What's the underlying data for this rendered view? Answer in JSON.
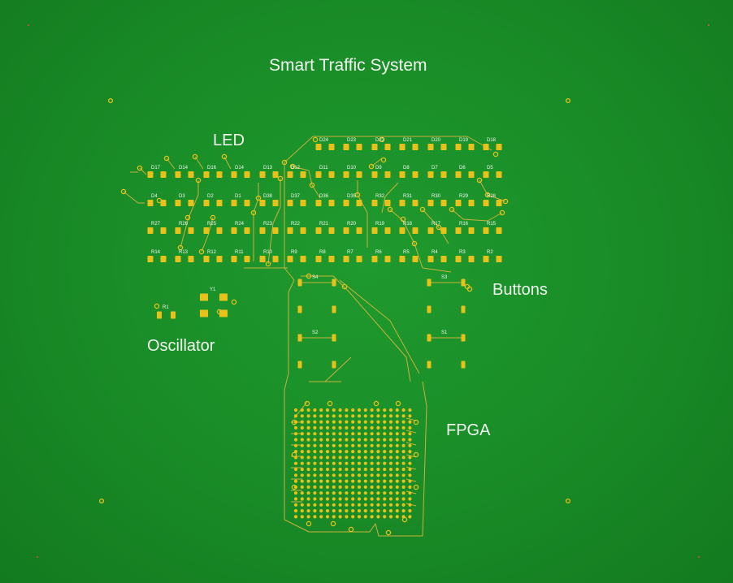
{
  "board": {
    "title": "Smart Traffic System",
    "labels": {
      "led": "LED",
      "buttons": "Buttons",
      "oscillator": "Oscillator",
      "fpga": "FPGA"
    },
    "colors": {
      "substrate": "#1a8e28",
      "pad": "#e8c21a",
      "trace": "#c9b23a",
      "silkscreen": "#f2f7f0"
    }
  },
  "designators": {
    "row1": [
      "D24",
      "D23",
      "D22",
      "D21",
      "D20",
      "D19",
      "D18"
    ],
    "row2": [
      "D17",
      "D14",
      "D16",
      "D14",
      "D13",
      "D12",
      "D11",
      "D10",
      "D9",
      "D8",
      "D7",
      "D6",
      "D5"
    ],
    "row3": [
      "D4",
      "D3",
      "D2",
      "D1",
      "D38",
      "D37",
      "D36",
      "D35",
      "R32",
      "R31",
      "R30",
      "R29",
      "R28"
    ],
    "row4": [
      "R27",
      "R26",
      "R25",
      "R24",
      "R23",
      "R22",
      "R21",
      "R20",
      "R19",
      "R18",
      "R17",
      "R16",
      "R15"
    ],
    "row5": [
      "R14",
      "R13",
      "R12",
      "R11",
      "R10",
      "R9",
      "R8",
      "R7",
      "R6",
      "R5",
      "R4",
      "R3",
      "R2"
    ],
    "buttons": [
      "S4",
      "S3",
      "S2",
      "S1"
    ],
    "oscillator": [
      "R1",
      "Y1"
    ]
  }
}
